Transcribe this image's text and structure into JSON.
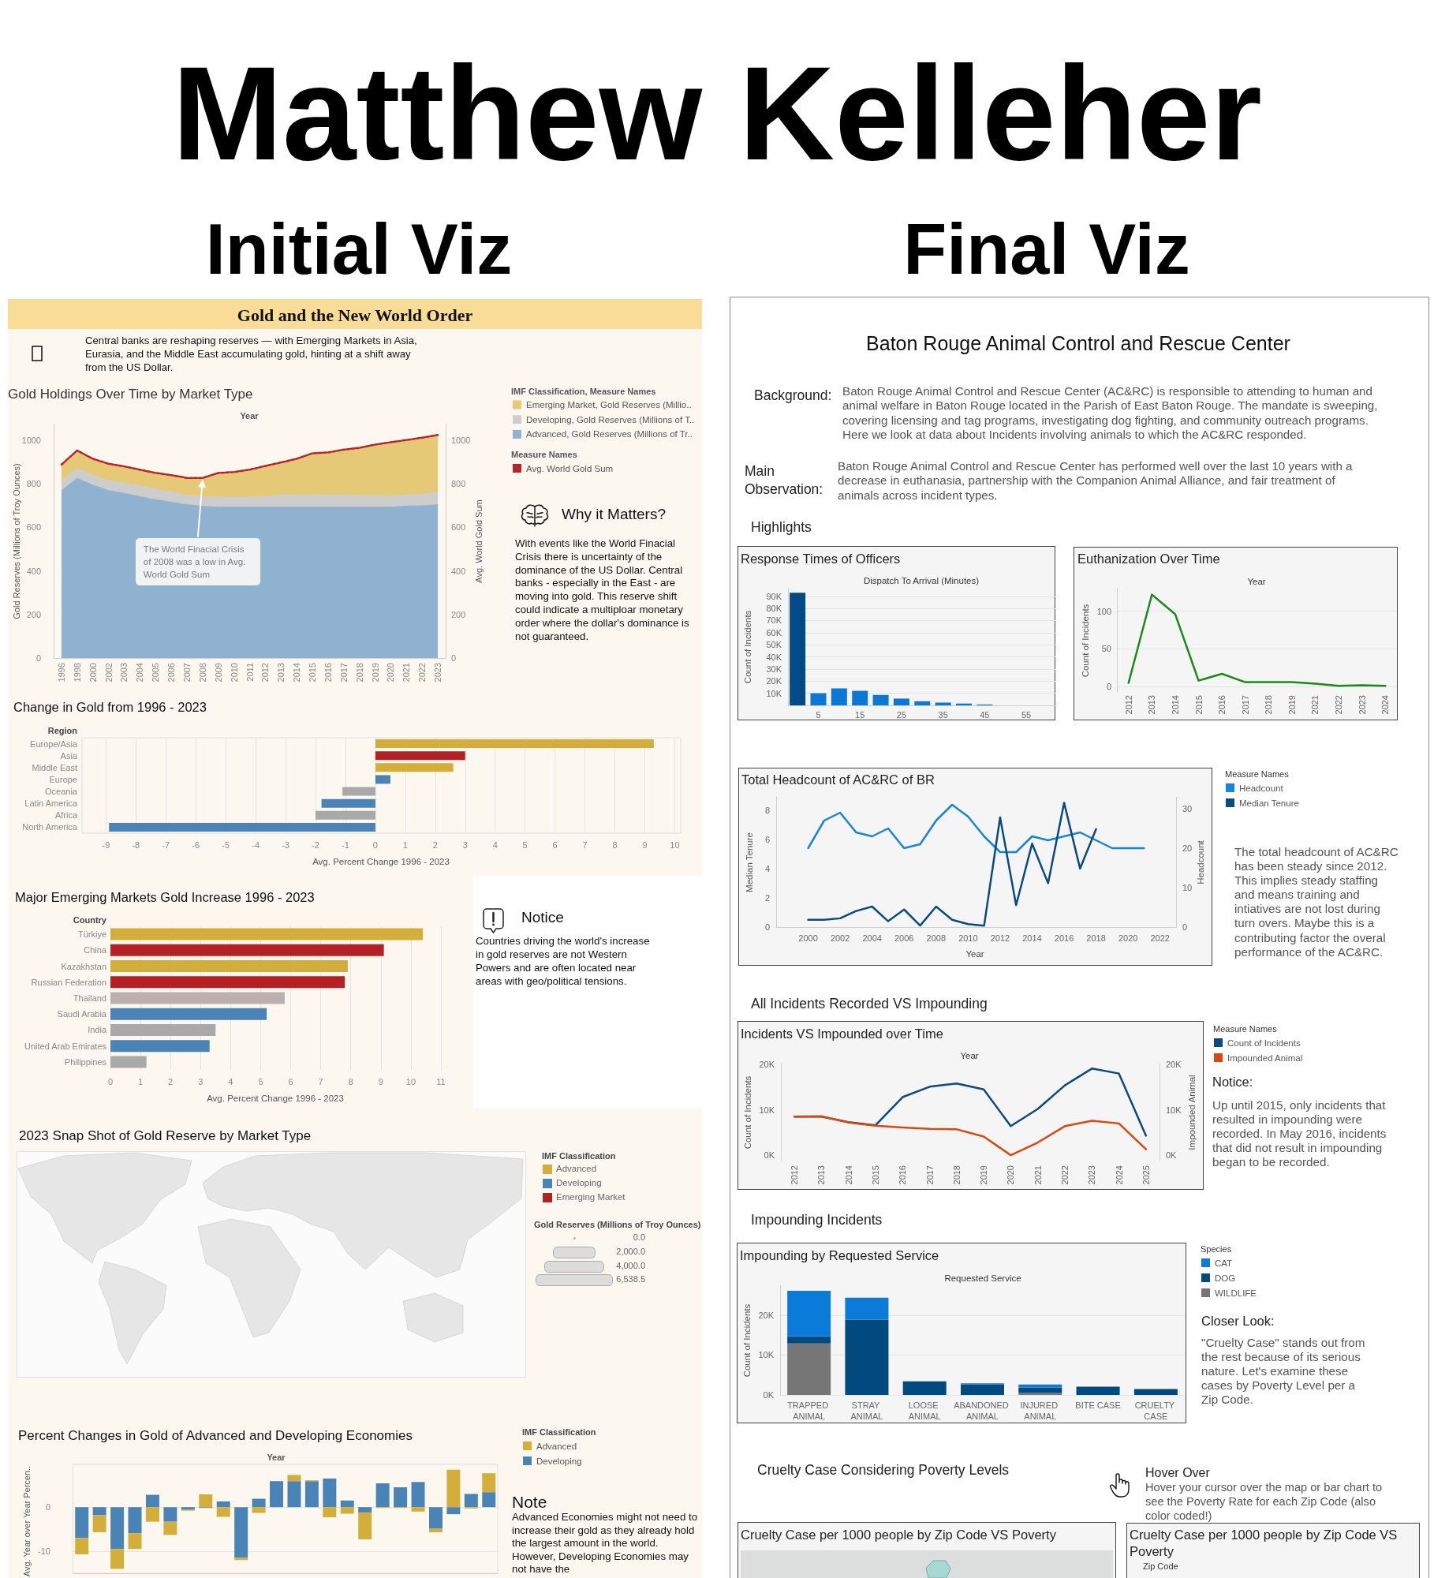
{
  "chart_data": [
    {
      "type": "other",
      "title": "Matthew Kelleher",
      "annotations": [
        "Initial Viz",
        "Final Viz"
      ]
    },
    {
      "type": "other",
      "title": "Gold and the New World Order",
      "annotations": [
        "Central banks are reshaping reserves — with Emerging Markets in Asia, Eurasia, and the Middle East accumulating gold, hinting at a shift away from the US Dollar."
      ]
    },
    {
      "type": "area",
      "title": "Gold Holdings Over Time by Market Type",
      "xlabel": "Year",
      "ylabel": "Gold Reserves (Millions of Troy Ounces)",
      "legend_title": "IMF Classification, Measure Names",
      "legend": "right",
      "stacked": true,
      "categories": [
        "1996",
        "1998",
        "2000",
        "2002",
        "2003",
        "2004",
        "2005",
        "2006",
        "2007",
        "2008",
        "2009",
        "2010",
        "2011",
        "2012",
        "2013",
        "2014",
        "2015",
        "2016",
        "2017",
        "2018",
        "2019",
        "2020",
        "2021",
        "2022",
        "2023"
      ],
      "series": [
        {
          "name": "Advanced, Gold Reserves (Millions of Tr..",
          "color": "#90b2d1",
          "values": [
            769,
            825,
            794,
            769,
            756,
            741,
            727,
            716,
            704,
            697,
            693,
            693,
            693,
            693,
            693,
            693,
            693,
            693,
            693,
            693,
            693,
            693,
            698,
            699,
            704
          ]
        },
        {
          "name": "Developing, Gold Reserves (Millions of T..",
          "color": "#cdcdcd",
          "values": [
            46,
            46,
            46,
            46,
            48,
            49,
            48,
            46,
            44,
            44,
            46,
            46,
            46,
            48,
            55,
            57,
            57,
            55,
            55,
            53,
            53,
            50,
            52,
            53,
            56
          ]
        },
        {
          "name": "Emerging Market, Gold Reserves (Millio..",
          "color": "#e6c977",
          "values": [
            73,
            82,
            75,
            77,
            76,
            75,
            75,
            78,
            79,
            86,
            111,
            115,
            126,
            141,
            150,
            165,
            190,
            196,
            209,
            219,
            234,
            248,
            251,
            260,
            264
          ]
        }
      ],
      "ylim": [
        0,
        1076
      ],
      "yticks": [
        0,
        200,
        400,
        600,
        800,
        1000
      ]
    },
    {
      "type": "line",
      "ylabel": "Avg. World Gold Sum",
      "legend_title": "Measure Names",
      "legend": "right",
      "tick_labels": "y",
      "categories": [
        "1996",
        "1998",
        "2000",
        "2002",
        "2003",
        "2004",
        "2005",
        "2006",
        "2007",
        "2008",
        "2009",
        "2010",
        "2011",
        "2012",
        "2013",
        "2014",
        "2015",
        "2016",
        "2017",
        "2018",
        "2019",
        "2020",
        "2021",
        "2022",
        "2023"
      ],
      "series": [
        {
          "name": "Avg. World Gold Sum",
          "line_style": "dashed",
          "color": "#b8232a",
          "values": [
            888,
            953,
            915,
            892,
            880,
            865,
            850,
            840,
            827,
            827,
            850,
            854,
            865,
            882,
            898,
            915,
            940,
            944,
            957,
            965,
            980,
            991,
            1001,
            1012,
            1024
          ]
        }
      ],
      "ylim": [
        0,
        1076
      ],
      "yticks": [
        0,
        200,
        400,
        600,
        800,
        1000
      ],
      "annotations": [
        {
          "text": "The World Finacial Crisis of 2008 was a low in Avg. World Gold Sum",
          "x": "2008",
          "y": 827
        }
      ]
    },
    {
      "type": "other",
      "title": "Why it Matters?",
      "annotations": [
        "With events like the World Finacial Crisis there is uncertainty of the dominance of the US Dollar. Central banks - especially in the East - are moving into gold. This reserve shift could indicate a multiploar monetary order where the dollar's dominance is not guaranteed."
      ]
    },
    {
      "type": "bar",
      "orientation": "horizontal",
      "title": "Change in Gold from 1996 - 2023",
      "ylabel": "Region",
      "xlabel": "Avg. Percent Change 1996 - 2023",
      "categories": [
        "Europe/Asia",
        "Asia",
        "Middle East",
        "Europe",
        "Oceania",
        "Latin America",
        "Africa",
        "North America"
      ],
      "values": [
        9.3,
        3.0,
        2.6,
        0.5,
        -1.1,
        -1.8,
        -2.0,
        -8.9
      ],
      "colors": [
        "#d4ae3a",
        "#b52025",
        "#d4ae3a",
        "#4a83b5",
        "#a9a9a9",
        "#4a83b5",
        "#a9a9a9",
        "#4a83b5"
      ],
      "xlim": [
        -9.8,
        10.2
      ],
      "xticks": [
        -9,
        -8,
        -7,
        -6,
        -5,
        -4,
        -3,
        -2,
        -1,
        0,
        1,
        2,
        3,
        4,
        5,
        6,
        7,
        8,
        9,
        10
      ],
      "grid": "x"
    },
    {
      "type": "bar",
      "orientation": "horizontal",
      "title": "Major Emerging Markets Gold Increase 1996 - 2023",
      "ylabel": "Country",
      "xlabel": "Avg. Percent Change 1996 - 2023",
      "categories": [
        "Türkiye",
        "China",
        "Kazakhstan",
        "Russian Federation",
        "Thailand",
        "Saudi Arabia",
        "India",
        "United Arab Emirates",
        "Philippines"
      ],
      "values": [
        10.4,
        9.1,
        7.9,
        7.8,
        5.8,
        5.2,
        3.5,
        3.3,
        1.2
      ],
      "colors": [
        "#d4ae3a",
        "#b52025",
        "#d4ae3a",
        "#b52025",
        "#bbb0ad",
        "#4a83b5",
        "#a9a9a9",
        "#4a83b5",
        "#a9a9a9"
      ],
      "xlim": [
        0,
        11
      ],
      "xticks": [
        0,
        1,
        2,
        3,
        4,
        5,
        6,
        7,
        8,
        9,
        10,
        11
      ],
      "grid": "x"
    },
    {
      "type": "other",
      "title": "Notice",
      "annotations": [
        "Countries driving the world's increase in gold reserves are not Western Powers and are often located near areas with geo/political tensions."
      ]
    },
    {
      "type": "other",
      "title": "2023 Snap Shot of Gold Reserve by Market Type",
      "legend_title": "IMF Classification",
      "categories": [
        "Advanced",
        "Developing",
        "Emerging Market"
      ],
      "colors": [
        "#d4ae3a",
        "#4a83b5",
        "#b52025"
      ],
      "annotations": [
        "Gold Reserves (Millions of Troy Ounces)",
        "0.0",
        "2,000.0",
        "4,000.0",
        "6,538.5"
      ]
    },
    {
      "type": "bar",
      "stacked": true,
      "title": "Percent Changes in Gold of Advanced and Developing Economies",
      "xlabel": "Year",
      "ylabel": "Avg. Year over Year Percen..",
      "legend_title": "IMF Classification",
      "legend": "right",
      "categories": [
        null,
        null,
        null,
        null,
        null,
        null,
        null,
        null,
        null,
        null,
        null,
        null,
        null,
        null,
        null,
        null,
        null,
        null,
        null,
        null,
        null,
        null,
        null,
        null
      ],
      "series": [
        {
          "name": "Developing",
          "color": "#4a83b5",
          "values": [
            -7.0,
            -1.8,
            -9.5,
            -5.9,
            2.8,
            -3.3,
            -0.6,
            -0.2,
            1.3,
            -11.5,
            1.9,
            5.9,
            5.9,
            5.9,
            6.5,
            1.5,
            -1.2,
            5.4,
            4.5,
            5.7,
            -4.9,
            -1.6,
            3.0,
            3.4
          ]
        },
        {
          "name": "Advanced",
          "color": "#d4ae3a",
          "values": [
            -3.7,
            -3.9,
            -4.5,
            -3.6,
            -3.3,
            -3.0,
            -0.2,
            2.9,
            -2.2,
            -0.5,
            -1.3,
            null,
            1.4,
            0.2,
            -2.3,
            -1.5,
            -6.1,
            -0.2,
            -0.2,
            -1.0,
            -0.8,
            8.5,
            -0.3,
            4.3
          ]
        }
      ],
      "ylim": [
        -15,
        9.7
      ],
      "yticks": [
        -10,
        0
      ],
      "grid": "y"
    },
    {
      "type": "other",
      "title": "Note",
      "annotations": [
        "Advanced Economies might not need to increase their gold as they already hold the largest amount in the world. However, Developing Economies may not have the"
      ]
    },
    {
      "type": "other",
      "title": "Baton Rouge Animal Control and Rescue Center",
      "annotations": [
        "Background:",
        "Baton Rouge Animal Control and Rescue Center (AC&RC) is responsible to attending to human and animal welfare in Baton Rouge located in the Parish of East Baton Rouge. The mandate is sweeping, covering licensing and tag programs, investigating dog fighting, and community outreach programs. Here we look at data about Incidents involving animals to which the AC&RC responded.",
        "Main Observation:",
        "Baton Rouge Animal Control and Rescue Center has performed well over the last 10 years with a decrease in euthanasia, partnership with the Companion Animal Alliance, and fair treatment of animals across incident types.",
        "Highlights"
      ]
    },
    {
      "type": "bar",
      "title": "Response Times of Officers",
      "xlabel": "Dispatch To Arrival (Minutes)",
      "ylabel": "Count of Incidents",
      "x": [
        0,
        5,
        10,
        15,
        20,
        25,
        30,
        35,
        40,
        45
      ],
      "values": [
        93000,
        10000,
        14000,
        12000,
        8600,
        5600,
        3400,
        2200,
        1500,
        700
      ],
      "colors": [
        "#004b87",
        "#0b78d6",
        "#0b78d6",
        "#0b78d6",
        "#0b78d6",
        "#0b78d6",
        "#0b78d6",
        "#0b78d6",
        "#0b78d6",
        "#0b78d6"
      ],
      "xlim": [
        -2.3,
        62
      ],
      "xticks": [
        5,
        15,
        25,
        35,
        45,
        55
      ],
      "ylim": [
        0,
        97000
      ],
      "yticks": [
        {
          "value": 10000,
          "label": "10K"
        },
        {
          "value": 20000,
          "label": "20K"
        },
        {
          "value": 30000,
          "label": "30K"
        },
        {
          "value": 40000,
          "label": "40K"
        },
        {
          "value": 50000,
          "label": "50K"
        },
        {
          "value": 60000,
          "label": "60K"
        },
        {
          "value": 70000,
          "label": "70K"
        },
        {
          "value": 80000,
          "label": "80K"
        },
        {
          "value": 90000,
          "label": "90K"
        }
      ],
      "grid": "y"
    },
    {
      "type": "line",
      "title": "Euthanization Over Time",
      "xlabel": "Year",
      "ylabel": "Count of Incidents",
      "categories": [
        "2012",
        "2013",
        "2014",
        "2015",
        "2016",
        "2017",
        "2018",
        "2019",
        "2021",
        "2022",
        "2023",
        "2024"
      ],
      "values": [
        5,
        122,
        96,
        8,
        17,
        6,
        6,
        6,
        4,
        1,
        2,
        1
      ],
      "color": "#1a8a1a",
      "ylim": [
        -7,
        130
      ],
      "yticks": [
        0,
        50,
        100
      ],
      "grid": "y"
    },
    {
      "type": "line",
      "title": "Total Headcount of AC&RC of BR",
      "xlabel": "Year",
      "ylabel": "Median Tenure",
      "y2label": "Headcount",
      "legend_title": "Measure Names",
      "legend": "right",
      "series": [
        {
          "name": "Headcount",
          "axis": "y2",
          "color": "#1784dc",
          "x": [
            2000,
            2001,
            2002,
            2003,
            2004,
            2005,
            2006,
            2007,
            2008,
            2009,
            2010,
            2011,
            2012,
            2013,
            2014,
            2015,
            2016,
            2017,
            2018,
            2019,
            2020,
            2021
          ],
          "values": [
            20,
            27,
            29,
            24,
            23,
            25,
            20,
            21,
            27,
            31,
            28,
            23,
            19,
            19,
            23,
            22,
            23,
            24,
            22,
            20,
            20,
            20
          ]
        },
        {
          "name": "Median Tenure",
          "color": "#0b4a80",
          "x": [
            2000,
            2001,
            2002,
            2003,
            2004,
            2005,
            2006,
            2007,
            2008,
            2009,
            2010,
            2011,
            2012,
            2013,
            2014,
            2015,
            2016,
            2017,
            2018
          ],
          "values": [
            0.5,
            0.5,
            0.6,
            1.1,
            1.4,
            0.4,
            1.2,
            0.1,
            1.4,
            0.5,
            0.2,
            0.1,
            7.5,
            1.5,
            5.7,
            3.0,
            8.5,
            4.0,
            6.7
          ]
        }
      ],
      "xlim": [
        1998,
        2023
      ],
      "xticks": [
        2000,
        2002,
        2004,
        2006,
        2008,
        2010,
        2012,
        2014,
        2016,
        2018,
        2020,
        2022
      ],
      "ylim": [
        0,
        8.9
      ],
      "yticks": [
        0,
        2,
        4,
        6,
        8
      ],
      "y2lim": [
        0,
        33
      ],
      "y2ticks": [
        0,
        10,
        20,
        30
      ],
      "annotations": [
        "The total headcount of AC&RC has been steady since 2012. This implies steady staffing and means training and intiatives are not lost during turn overs. Maybe this is a contributing factor the overal performance of the AC&RC."
      ]
    },
    {
      "type": "line",
      "title": "Incidents VS Impounded over Time",
      "subtitle": "All Incidents Recorded VS Impounding",
      "xlabel": "Year",
      "ylabel": "Count of Incidents",
      "y2label": "Impounded Animal",
      "legend_title": "Measure Names",
      "legend": "right",
      "categories": [
        "2012",
        "2013",
        "2014",
        "2015",
        "2016",
        "2017",
        "2018",
        "2019",
        "2020",
        "2021",
        "2022",
        "2023",
        "2024",
        "2025"
      ],
      "series": [
        {
          "name": "Count of Incidents",
          "color": "#0b4a80",
          "values": [
            8500,
            8500,
            7300,
            6600,
            12800,
            15100,
            15800,
            14500,
            6400,
            10200,
            15400,
            19100,
            18000,
            4300
          ]
        },
        {
          "name": "Impounded Animal",
          "axis": "y2",
          "color": "#d9480f",
          "values": [
            8500,
            8600,
            7200,
            6500,
            6100,
            5800,
            5700,
            4100,
            0,
            2800,
            6400,
            7600,
            7000,
            1300
          ]
        }
      ],
      "ylim": [
        -1200,
        20200
      ],
      "yticks": [
        {
          "value": 0,
          "label": "0K"
        },
        {
          "value": 10000,
          "label": "10K"
        },
        {
          "value": 20000,
          "label": "20K"
        }
      ],
      "y2lim": [
        -1200,
        20200
      ],
      "y2ticks": [
        {
          "value": 0,
          "label": "0K"
        },
        {
          "value": 10000,
          "label": "10K"
        },
        {
          "value": 20000,
          "label": "20K"
        }
      ],
      "annotations": [
        "Notice:",
        "Up until 2015, only incidents that resulted in impounding were recorded. In May 2016, incidents that did not result in impounding began to be recorded."
      ]
    },
    {
      "type": "bar",
      "stacked": true,
      "title": "Impounding by Requested Service",
      "subtitle": "Impounding Incidents",
      "xlabel": "Requested Service",
      "ylabel": "Count of Incidents",
      "legend_title": "Species",
      "legend": "right",
      "categories": [
        "TRAPPED ANIMAL",
        "STRAY ANIMAL",
        "LOOSE ANIMAL",
        "ABANDONED ANIMAL",
        "INJURED ANIMAL",
        "BITE CASE",
        "CRUELTY CASE"
      ],
      "series": [
        {
          "name": "WILDLIFE",
          "color": "#767676",
          "values": [
            12900,
            null,
            null,
            null,
            500,
            null,
            null
          ]
        },
        {
          "name": "DOG",
          "color": "#004a7f",
          "values": [
            1800,
            18900,
            3400,
            2600,
            1400,
            2100,
            1500
          ]
        },
        {
          "name": "CAT",
          "color": "#0a7bd8",
          "values": [
            11400,
            5500,
            null,
            300,
            700,
            null,
            null
          ]
        }
      ],
      "ylim": [
        0,
        27500
      ],
      "yticks": [
        {
          "value": 0,
          "label": "0K"
        },
        {
          "value": 10000,
          "label": "10K"
        },
        {
          "value": 20000,
          "label": "20K"
        }
      ],
      "grid": "y",
      "annotations": [
        "Closer Look:",
        "\"Cruelty Case\" stands out from the rest because of its serious nature. Let's examine these cases by Poverty Level per a Zip Code."
      ]
    },
    {
      "type": "other",
      "title": "Cruelty Case Considering Poverty Levels",
      "annotations": [
        "Hover Over",
        "Hover your cursor over the map or bar chart to see the Poverty Rate for each Zip Code (also color coded!)"
      ]
    },
    {
      "type": "other",
      "title": "Cruelty Case per 1000 people by Zip Code VS Poverty"
    },
    {
      "type": "other",
      "title": "Cruelty Case per 1000 people by Zip Code VS Poverty",
      "annotations": [
        "Zip Code"
      ]
    }
  ]
}
